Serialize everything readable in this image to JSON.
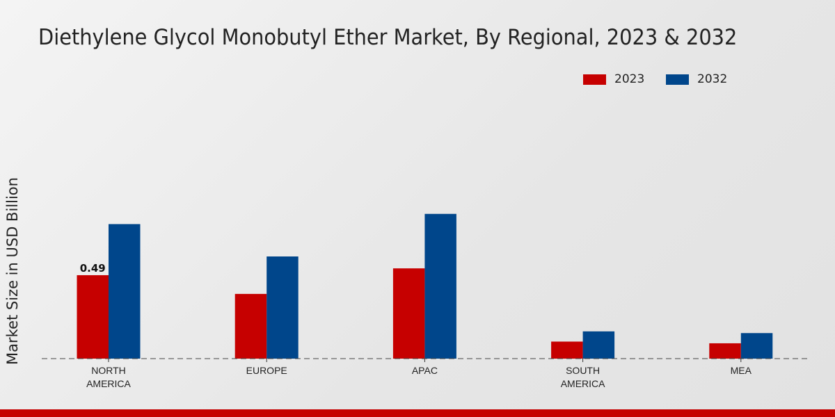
{
  "chart_data": {
    "type": "bar",
    "title": "Diethylene Glycol Monobutyl Ether Market, By Regional, 2023 & 2032",
    "xlabel": "",
    "ylabel": "Market Size in USD Billion",
    "categories": [
      "NORTH AMERICA",
      "EUROPE",
      "APAC",
      "SOUTH AMERICA",
      "MEA"
    ],
    "series": [
      {
        "name": "2023",
        "color": "#c60000",
        "values": [
          0.49,
          0.38,
          0.53,
          0.1,
          0.09
        ]
      },
      {
        "name": "2032",
        "color": "#00468b",
        "values": [
          0.79,
          0.6,
          0.85,
          0.16,
          0.15
        ]
      }
    ],
    "data_labels": [
      {
        "series": "2023",
        "category": "NORTH AMERICA",
        "text": "0.49"
      }
    ],
    "ylim": [
      0,
      1.1
    ],
    "grid": false,
    "legend_position": "top-right"
  }
}
